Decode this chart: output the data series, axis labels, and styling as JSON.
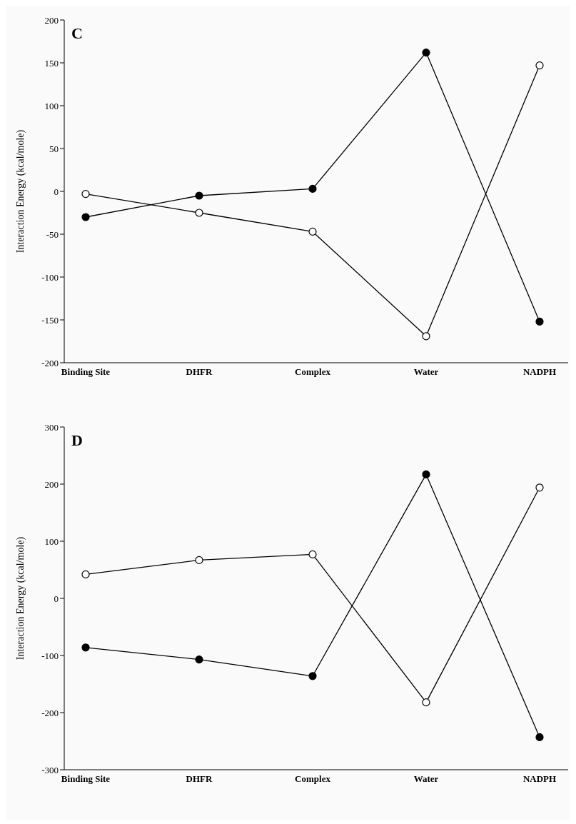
{
  "chart_data": [
    {
      "type": "line",
      "title": "C",
      "ylabel": "Interaction Energy (kcal/mole)",
      "categories": [
        "Binding Site",
        "DHFR",
        "Complex",
        "Water",
        "NADPH"
      ],
      "marker": "circle",
      "line_style": "solid",
      "grid": false,
      "legend": false,
      "ylim": [
        -200,
        200
      ],
      "yticks": [
        -200,
        -150,
        -100,
        -50,
        0,
        50,
        100,
        150,
        200
      ],
      "series": [
        {
          "color": "#000000",
          "values": [
            -3,
            -25,
            -47,
            -169,
            147
          ]
        },
        {
          "color": "#000000",
          "values": [
            -30,
            -5,
            3,
            162,
            -152
          ]
        }
      ]
    },
    {
      "type": "line",
      "title": "D",
      "ylabel": "Interaction Energy (kcal/mole)",
      "categories": [
        "Binding Site",
        "DHFR",
        "Complex",
        "Water",
        "NADPH"
      ],
      "marker": "circle",
      "line_style": "solid",
      "grid": false,
      "legend": false,
      "ylim": [
        -300,
        300
      ],
      "yticks": [
        -300,
        -200,
        -100,
        0,
        100,
        200,
        300
      ],
      "series": [
        {
          "color": "#000000",
          "values": [
            42,
            67,
            77,
            -182,
            194
          ]
        },
        {
          "color": "#000000",
          "values": [
            -86,
            -107,
            -136,
            217,
            -243
          ]
        }
      ]
    }
  ]
}
